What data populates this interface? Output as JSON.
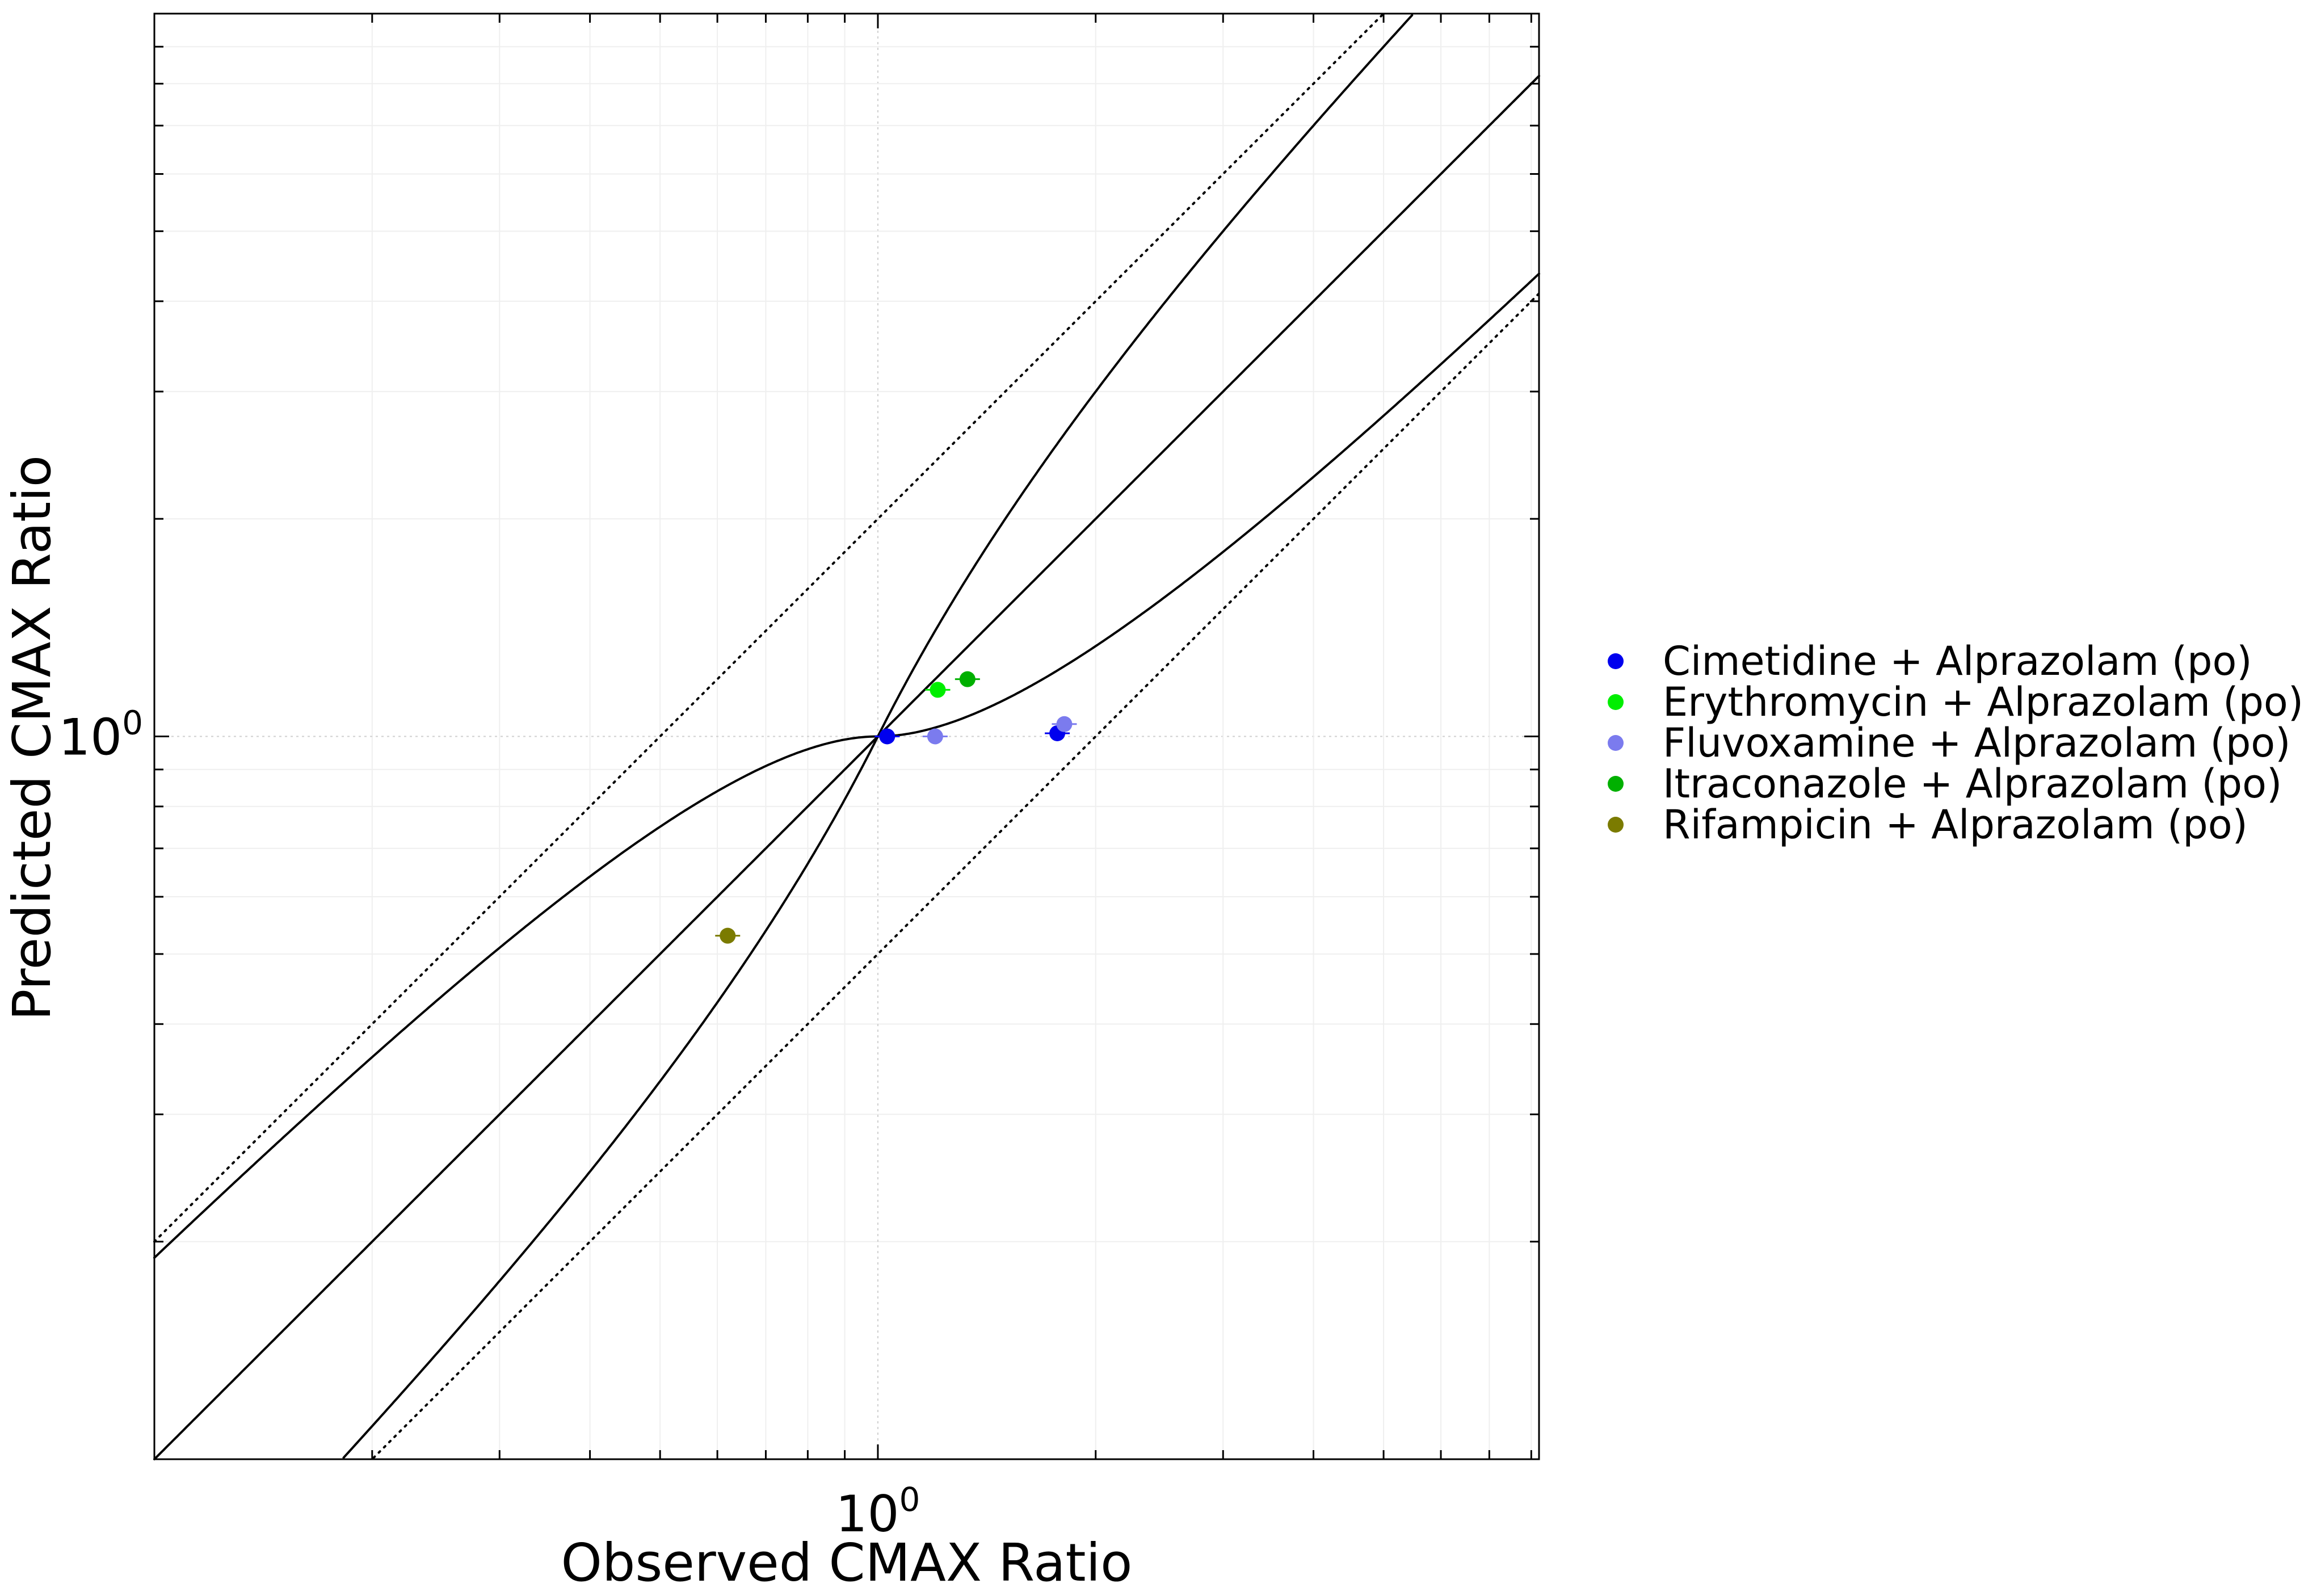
{
  "chart_data": {
    "type": "scatter",
    "xlabel": "Observed CMAX Ratio",
    "ylabel": "Predicted CMAX Ratio",
    "x_scale": "log",
    "y_scale": "log",
    "xlim": [
      0.1,
      8.2
    ],
    "ylim": [
      0.1,
      10.0
    ],
    "grid": true,
    "legend_position": "right",
    "x_ticks": [
      {
        "base": "10",
        "exp": "0",
        "value": 1
      }
    ],
    "y_ticks": [
      {
        "base": "10",
        "exp": "0",
        "value": 1
      }
    ],
    "reference_lines": [
      {
        "name": "identity",
        "style": "solid"
      },
      {
        "name": "guest-upper",
        "style": "solid"
      },
      {
        "name": "guest-lower",
        "style": "solid"
      },
      {
        "name": "twofold-upper",
        "style": "dotted",
        "factor": 2
      },
      {
        "name": "twofold-lower",
        "style": "dotted",
        "factor": 0.5
      }
    ],
    "series": [
      {
        "name": "Cimetidine + Alprazolam (po)",
        "color": "#0000ee",
        "points": [
          {
            "x": 1.03,
            "y": 1.0
          },
          {
            "x": 1.77,
            "y": 1.01
          }
        ]
      },
      {
        "name": "Erythromycin + Alprazolam (po)",
        "color": "#00ee00",
        "points": [
          {
            "x": 1.21,
            "y": 1.16
          }
        ]
      },
      {
        "name": "Fluvoxamine + Alprazolam (po)",
        "color": "#7b7bee",
        "points": [
          {
            "x": 1.2,
            "y": 1.0
          },
          {
            "x": 1.81,
            "y": 1.04
          }
        ]
      },
      {
        "name": "Itraconazole + Alprazolam (po)",
        "color": "#00b000",
        "points": [
          {
            "x": 1.33,
            "y": 1.2
          }
        ]
      },
      {
        "name": "Rifampicin + Alprazolam (po)",
        "color": "#7b7b00",
        "points": [
          {
            "x": 0.62,
            "y": 0.53
          }
        ]
      }
    ]
  }
}
